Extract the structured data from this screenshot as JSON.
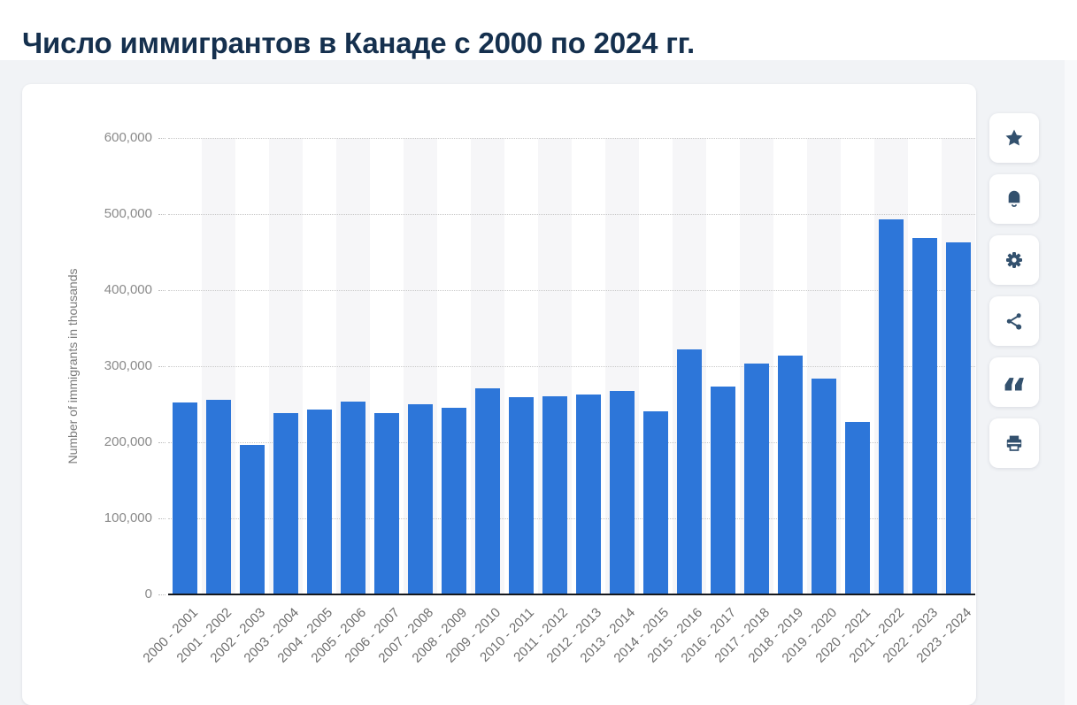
{
  "page": {
    "title": "Число иммигрантов в Канаде с 2000 по 2024 гг."
  },
  "toolbar": {
    "quote_glyph": "“",
    "buttons": [
      {
        "name": "favorite",
        "icon": "star-icon"
      },
      {
        "name": "notifications",
        "icon": "bell-icon"
      },
      {
        "name": "settings",
        "icon": "gear-icon"
      },
      {
        "name": "share",
        "icon": "share-icon"
      },
      {
        "name": "cite",
        "icon": "quote-icon"
      },
      {
        "name": "print",
        "icon": "printer-icon"
      }
    ]
  },
  "colors": {
    "bar": "#2d76d9",
    "title": "#15304e",
    "icon": "#33516e",
    "section_background": "#f1f3f6",
    "band_alt": "#f6f6f8",
    "axis_text": "#8a8a8a",
    "baseline": "#15181d"
  },
  "chart_data": {
    "type": "bar",
    "title": "Число иммигрантов в Канаде с 2000 по 2024 гг.",
    "xlabel": "",
    "ylabel": "Number of immigrants in thousands",
    "ylim": [
      0,
      600000
    ],
    "ytick_interval": 100000,
    "ytick_labels": [
      "600,000",
      "500,000",
      "400,000",
      "300,000",
      "200,000",
      "100,000",
      "0"
    ],
    "grid": "horizontal-dotted",
    "legend": "none",
    "bar_color": "#2d76d9",
    "categories": [
      "2000 - 2001",
      "2001 - 2002",
      "2002 - 2003",
      "2003 - 2004",
      "2004 - 2005",
      "2005 - 2006",
      "2006 - 2007",
      "2007 - 2008",
      "2008 - 2009",
      "2009 - 2010",
      "2010 - 2011",
      "2011 - 2012",
      "2012 - 2013",
      "2013 - 2014",
      "2014 - 2015",
      "2015 - 2016",
      "2016 - 2017",
      "2017 - 2018",
      "2018 - 2019",
      "2019 - 2020",
      "2020 - 2021",
      "2021 - 2022",
      "2022 - 2023",
      "2023 - 2024"
    ],
    "values": [
      252500,
      256300,
      197000,
      238500,
      243000,
      254000,
      238000,
      249600,
      245300,
      270600,
      259000,
      260000,
      263100,
      267900,
      240800,
      322000,
      272700,
      303300,
      313600,
      284200,
      226200,
      493000,
      468800,
      463000
    ]
  }
}
